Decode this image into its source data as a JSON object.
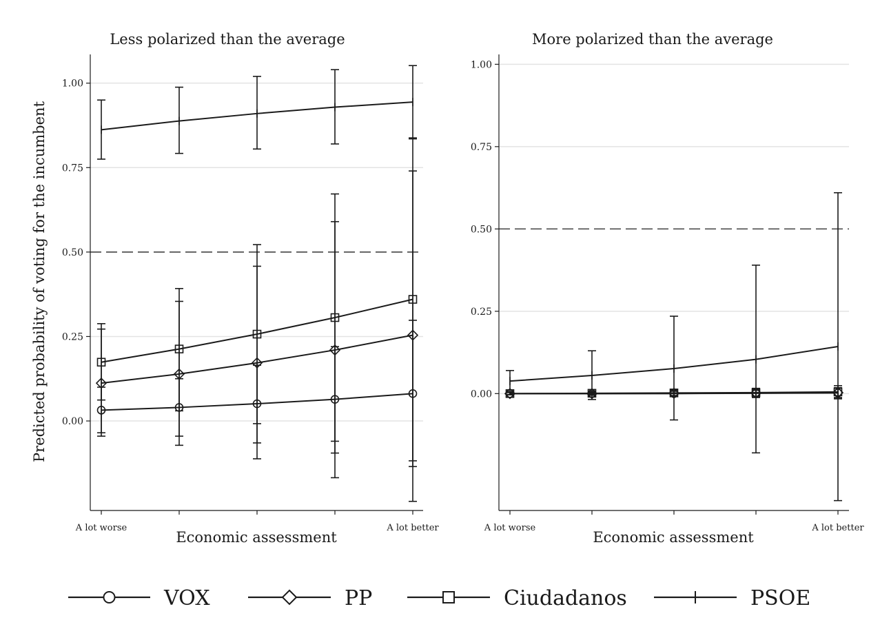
{
  "figure": {
    "ylabel": "Predicted probability of voting for the incumbent",
    "legend": {
      "placement": "bottom",
      "items": [
        {
          "label": "VOX",
          "marker": "circle-icon"
        },
        {
          "label": "PP",
          "marker": "diamond-icon"
        },
        {
          "label": "Ciudadanos",
          "marker": "square-icon"
        },
        {
          "label": "PSOE",
          "marker": "plus-icon"
        }
      ]
    }
  },
  "chart_data": [
    {
      "type": "line",
      "title": "Less polarized than the average",
      "xlabel": "Economic assessment",
      "x": [
        1,
        2,
        3,
        4,
        5
      ],
      "xtick_labels": [
        {
          "x": 1,
          "label": "A lot worse"
        },
        {
          "x": 5,
          "label": "A lot better"
        }
      ],
      "xlim": [
        0.86,
        5.12
      ],
      "ylim": [
        -0.265,
        1.085
      ],
      "yticks": [
        {
          "value": 0,
          "label": "0.00"
        },
        {
          "value": 0.25,
          "label": "0.25"
        },
        {
          "value": 0.5,
          "label": "0.50"
        },
        {
          "value": 0.75,
          "label": "0.75"
        },
        {
          "value": 1,
          "label": "1.00"
        }
      ],
      "grid": true,
      "reference_line": 0.5,
      "series": [
        {
          "name": "VOX",
          "marker": "circle",
          "values": [
            0.032,
            0.04,
            0.051,
            0.064,
            0.081
          ],
          "lower": [
            -0.035,
            -0.045,
            -0.065,
            -0.095,
            -0.135
          ],
          "upper": [
            0.1,
            0.125,
            0.165,
            0.22,
            0.298
          ]
        },
        {
          "name": "PP",
          "marker": "diamond",
          "values": [
            0.112,
            0.139,
            0.172,
            0.21,
            0.254
          ],
          "lower": [
            -0.045,
            -0.072,
            -0.112,
            -0.168,
            -0.238
          ],
          "upper": [
            0.272,
            0.354,
            0.458,
            0.59,
            0.74
          ]
        },
        {
          "name": "Ciudadanos",
          "marker": "square",
          "values": [
            0.174,
            0.213,
            0.257,
            0.306,
            0.36
          ],
          "lower": [
            0.062,
            0.03,
            -0.008,
            -0.06,
            -0.118
          ],
          "upper": [
            0.288,
            0.392,
            0.522,
            0.672,
            0.838
          ]
        },
        {
          "name": "PSOE",
          "marker": "plus",
          "values": [
            0.862,
            0.888,
            0.91,
            0.929,
            0.944
          ],
          "lower": [
            0.775,
            0.792,
            0.805,
            0.82,
            0.835
          ],
          "upper": [
            0.95,
            0.988,
            1.02,
            1.04,
            1.052
          ]
        }
      ]
    },
    {
      "type": "line",
      "title": "More polarized than the average",
      "xlabel": "Economic assessment",
      "x": [
        1,
        2,
        3,
        4,
        5
      ],
      "xtick_labels": [
        {
          "x": 1,
          "label": "A lot worse"
        },
        {
          "x": 5,
          "label": "A lot better"
        }
      ],
      "xlim": [
        0.86,
        5.12
      ],
      "ylim": [
        -0.355,
        1.03
      ],
      "yticks": [
        {
          "value": 0,
          "label": "0.00"
        },
        {
          "value": 0.25,
          "label": "0.25"
        },
        {
          "value": 0.5,
          "label": "0.50"
        },
        {
          "value": 0.75,
          "label": "0.75"
        },
        {
          "value": 1,
          "label": "1.00"
        }
      ],
      "grid": true,
      "reference_line": 0.5,
      "series": [
        {
          "name": "VOX",
          "marker": "circle",
          "values": [
            0.0,
            0.0,
            0.0,
            0.001,
            0.002
          ],
          "lower": [
            -0.003,
            -0.004,
            -0.006,
            -0.008,
            -0.012
          ],
          "upper": [
            0.003,
            0.004,
            0.007,
            0.01,
            0.016
          ]
        },
        {
          "name": "PP",
          "marker": "diamond",
          "values": [
            0.0,
            0.0,
            0.001,
            0.002,
            0.003
          ],
          "lower": [
            -0.003,
            -0.004,
            -0.006,
            -0.009,
            -0.013
          ],
          "upper": [
            0.004,
            0.005,
            0.008,
            0.012,
            0.018
          ]
        },
        {
          "name": "Ciudadanos",
          "marker": "square",
          "values": [
            0.0,
            0.001,
            0.002,
            0.003,
            0.005
          ],
          "lower": [
            -0.004,
            -0.005,
            -0.008,
            -0.012,
            -0.016
          ],
          "upper": [
            0.005,
            0.007,
            0.011,
            0.016,
            0.024
          ]
        },
        {
          "name": "PSOE",
          "marker": "plus",
          "values": [
            0.038,
            0.055,
            0.076,
            0.104,
            0.143
          ],
          "lower": [
            0.006,
            -0.018,
            -0.08,
            -0.18,
            -0.325
          ],
          "upper": [
            0.07,
            0.13,
            0.235,
            0.39,
            0.61
          ]
        }
      ]
    }
  ]
}
